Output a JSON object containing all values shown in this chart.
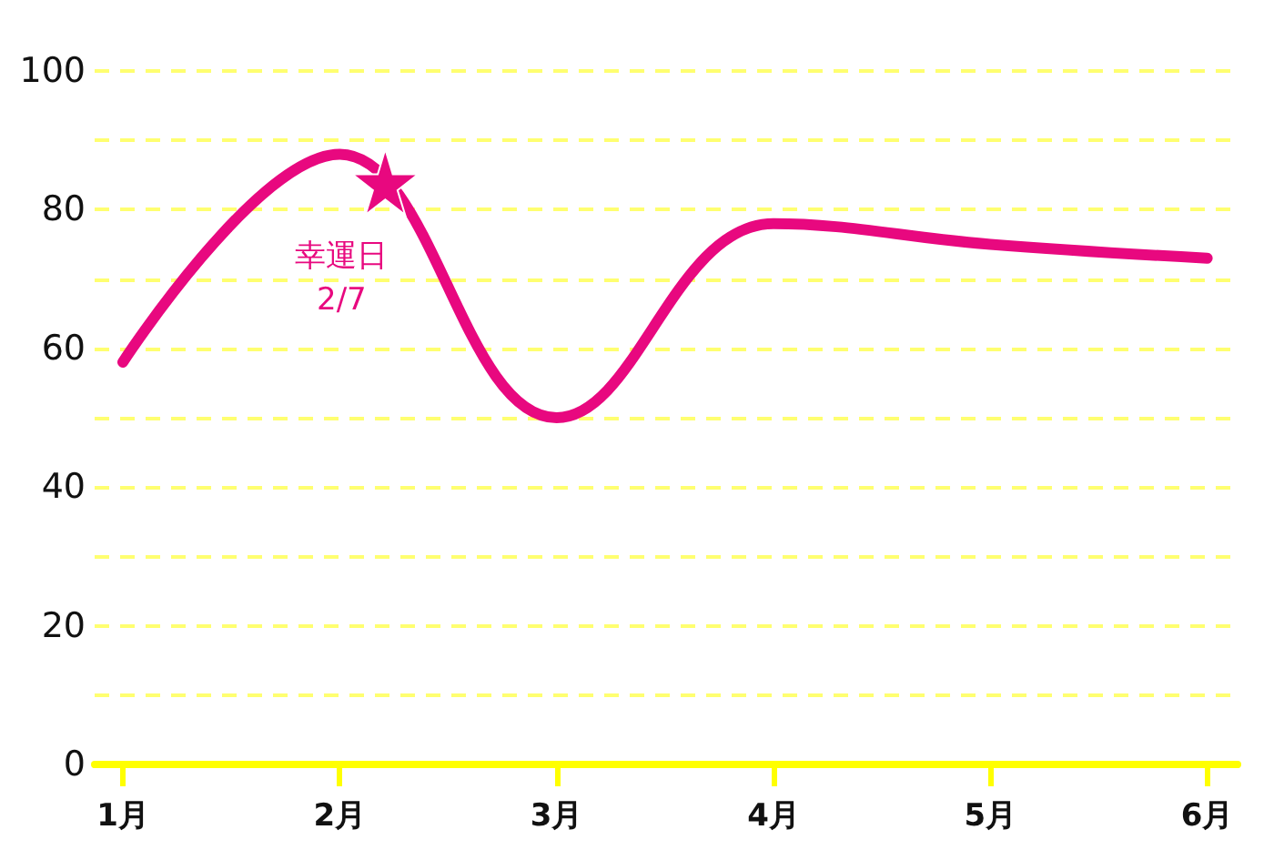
{
  "chart_data": {
    "type": "line",
    "x": [
      1,
      2,
      3,
      4,
      5,
      6
    ],
    "xlim": [
      0.87,
      6.14
    ],
    "xticks": [
      {
        "value": 1,
        "label": "1月"
      },
      {
        "value": 2,
        "label": "2月"
      },
      {
        "value": 3,
        "label": "3月"
      },
      {
        "value": 4,
        "label": "4月"
      },
      {
        "value": 5,
        "label": "5月"
      },
      {
        "value": 6,
        "label": "6月"
      }
    ],
    "ylim": [
      0,
      100
    ],
    "yticks": [
      0,
      {
        "value": 10,
        "label": null
      },
      20,
      {
        "value": 30,
        "label": null
      },
      40,
      {
        "value": 50,
        "label": null
      },
      60,
      {
        "value": 70,
        "label": null
      },
      80,
      {
        "value": 90,
        "label": null
      },
      100
    ],
    "grid": "y",
    "marker": "none",
    "line_style": "solid",
    "series": [
      {
        "color": "#e8087f",
        "values": [
          58,
          88,
          50,
          78,
          75,
          73
        ]
      },
      {
        "type": "scatter",
        "marker": "star",
        "color": "#e8087f",
        "x": [
          2.21
        ],
        "values": [
          84
        ]
      }
    ],
    "annotations": [
      {
        "text": "幸運日\n2/7",
        "x": 2.21,
        "y": 84
      }
    ]
  }
}
